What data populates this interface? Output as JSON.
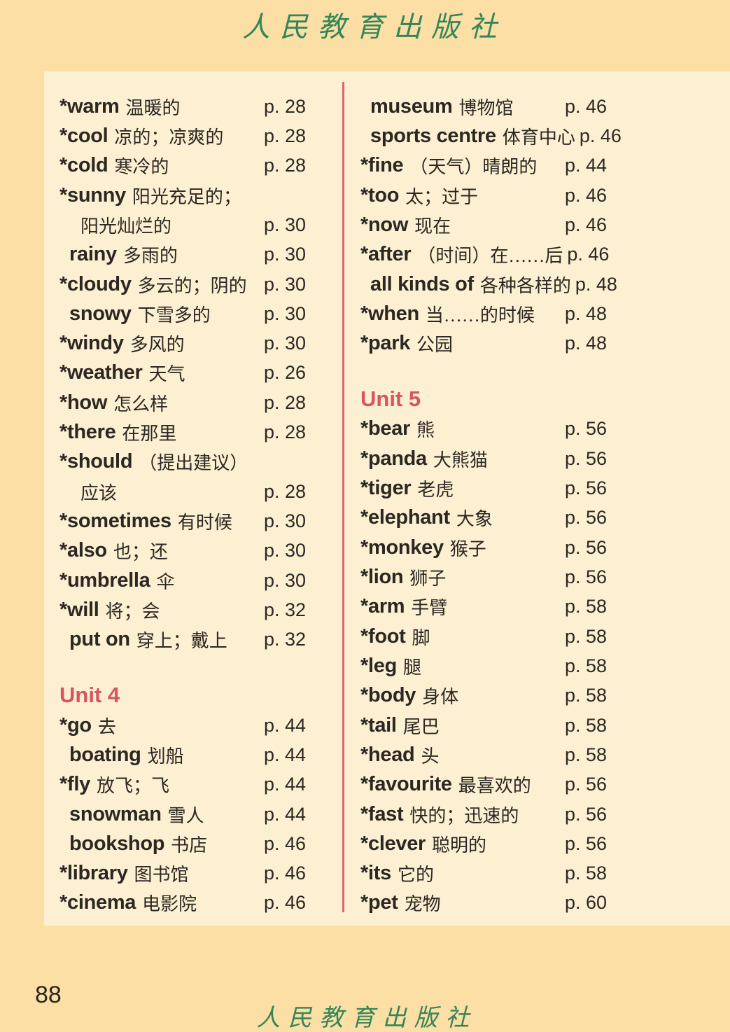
{
  "header": {
    "logo": "人民教育出版社"
  },
  "footer": {
    "logo": "人民教育出版社",
    "page_number": "88"
  },
  "colors": {
    "page_bg": "#fbdfa4",
    "panel_bg": "#fdf0d2",
    "divider": "#e2636b",
    "unit_heading": "#d8555e",
    "text": "#2b2722",
    "logo_green": "#35855a"
  },
  "columns": {
    "left": {
      "sections": [
        {
          "heading": "",
          "entries": [
            {
              "word": "*warm",
              "meaning": "温暖的",
              "page": "p. 28",
              "indent": 0
            },
            {
              "word": "*cool",
              "meaning": "凉的；凉爽的",
              "page": "p. 28",
              "indent": 0
            },
            {
              "word": "*cold",
              "meaning": "寒冷的",
              "page": "p. 28",
              "indent": 0
            },
            {
              "word": "*sunny",
              "meaning": "阳光充足的；",
              "page": "",
              "indent": 0
            },
            {
              "word": "",
              "meaning": "阳光灿烂的",
              "page": "p. 30",
              "indent": 2
            },
            {
              "word": "rainy",
              "meaning": "多雨的",
              "page": "p. 30",
              "indent": 1
            },
            {
              "word": "*cloudy",
              "meaning": "多云的；阴的",
              "page": "p. 30",
              "indent": 0
            },
            {
              "word": "snowy",
              "meaning": "下雪多的",
              "page": "p. 30",
              "indent": 1
            },
            {
              "word": "*windy",
              "meaning": "多风的",
              "page": "p. 30",
              "indent": 0
            },
            {
              "word": "*weather",
              "meaning": "天气",
              "page": "p. 26",
              "indent": 0
            },
            {
              "word": "*how",
              "meaning": "怎么样",
              "page": "p. 28",
              "indent": 0
            },
            {
              "word": "*there",
              "meaning": "在那里",
              "page": "p. 28",
              "indent": 0
            },
            {
              "word": "*should",
              "meaning": "（提出建议）",
              "page": "",
              "indent": 0
            },
            {
              "word": "",
              "meaning": "应该",
              "page": "p. 28",
              "indent": 2
            },
            {
              "word": "*sometimes",
              "meaning": "有时候",
              "page": "p. 30",
              "indent": 0
            },
            {
              "word": "*also",
              "meaning": "也；还",
              "page": "p. 30",
              "indent": 0
            },
            {
              "word": "*umbrella",
              "meaning": "伞",
              "page": "p. 30",
              "indent": 0
            },
            {
              "word": "*will",
              "meaning": "将；会",
              "page": "p. 32",
              "indent": 0
            },
            {
              "word": "put on",
              "meaning": "穿上；戴上",
              "page": "p. 32",
              "indent": 1
            }
          ]
        },
        {
          "heading": "Unit 4",
          "entries": [
            {
              "word": "*go",
              "meaning": "去",
              "page": "p. 44",
              "indent": 0
            },
            {
              "word": "boating",
              "meaning": "划船",
              "page": "p. 44",
              "indent": 1
            },
            {
              "word": "*fly",
              "meaning": "放飞；飞",
              "page": "p. 44",
              "indent": 0
            },
            {
              "word": "snowman",
              "meaning": "雪人",
              "page": "p. 44",
              "indent": 1
            },
            {
              "word": "bookshop",
              "meaning": "书店",
              "page": "p. 46",
              "indent": 1
            },
            {
              "word": "*library",
              "meaning": "图书馆",
              "page": "p. 46",
              "indent": 0
            },
            {
              "word": "*cinema",
              "meaning": "电影院",
              "page": "p. 46",
              "indent": 0
            }
          ]
        }
      ]
    },
    "right": {
      "sections": [
        {
          "heading": "",
          "entries": [
            {
              "word": "museum",
              "meaning": "博物馆",
              "page": "p. 46",
              "indent": 1
            },
            {
              "word": "sports centre",
              "meaning": "体育中心",
              "page": "p. 46",
              "indent": 1
            },
            {
              "word": "*fine",
              "meaning": "（天气）晴朗的",
              "page": "p. 44",
              "indent": 0
            },
            {
              "word": "*too",
              "meaning": "太；过于",
              "page": "p. 46",
              "indent": 0
            },
            {
              "word": "*now",
              "meaning": "现在",
              "page": "p. 46",
              "indent": 0
            },
            {
              "word": "*after",
              "meaning": "（时间）在……后",
              "page": "p. 46",
              "indent": 0
            },
            {
              "word": "all kinds of",
              "meaning": "各种各样的",
              "page": "p. 48",
              "indent": 1
            },
            {
              "word": "*when",
              "meaning": "当……的时候",
              "page": "p. 48",
              "indent": 0
            },
            {
              "word": "*park",
              "meaning": "公园",
              "page": "p. 48",
              "indent": 0
            }
          ]
        },
        {
          "heading": "Unit 5",
          "entries": [
            {
              "word": "*bear",
              "meaning": "熊",
              "page": "p. 56",
              "indent": 0
            },
            {
              "word": "*panda",
              "meaning": "大熊猫",
              "page": "p. 56",
              "indent": 0
            },
            {
              "word": "*tiger",
              "meaning": "老虎",
              "page": "p. 56",
              "indent": 0
            },
            {
              "word": "*elephant",
              "meaning": "大象",
              "page": "p. 56",
              "indent": 0
            },
            {
              "word": "*monkey",
              "meaning": "猴子",
              "page": "p. 56",
              "indent": 0
            },
            {
              "word": "*lion",
              "meaning": "狮子",
              "page": "p. 56",
              "indent": 0
            },
            {
              "word": "*arm",
              "meaning": "手臂",
              "page": "p. 58",
              "indent": 0
            },
            {
              "word": "*foot",
              "meaning": "脚",
              "page": "p. 58",
              "indent": 0
            },
            {
              "word": "*leg",
              "meaning": "腿",
              "page": "p. 58",
              "indent": 0
            },
            {
              "word": "*body",
              "meaning": "身体",
              "page": "p. 58",
              "indent": 0
            },
            {
              "word": "*tail",
              "meaning": "尾巴",
              "page": "p. 58",
              "indent": 0
            },
            {
              "word": "*head",
              "meaning": "头",
              "page": "p. 58",
              "indent": 0
            },
            {
              "word": "*favourite",
              "meaning": "最喜欢的",
              "page": "p. 56",
              "indent": 0
            },
            {
              "word": "*fast",
              "meaning": "快的；迅速的",
              "page": "p. 56",
              "indent": 0
            },
            {
              "word": "*clever",
              "meaning": "聪明的",
              "page": "p. 56",
              "indent": 0
            },
            {
              "word": "*its",
              "meaning": "它的",
              "page": "p. 58",
              "indent": 0
            },
            {
              "word": "*pet",
              "meaning": "宠物",
              "page": "p. 60",
              "indent": 0
            }
          ]
        }
      ]
    }
  }
}
